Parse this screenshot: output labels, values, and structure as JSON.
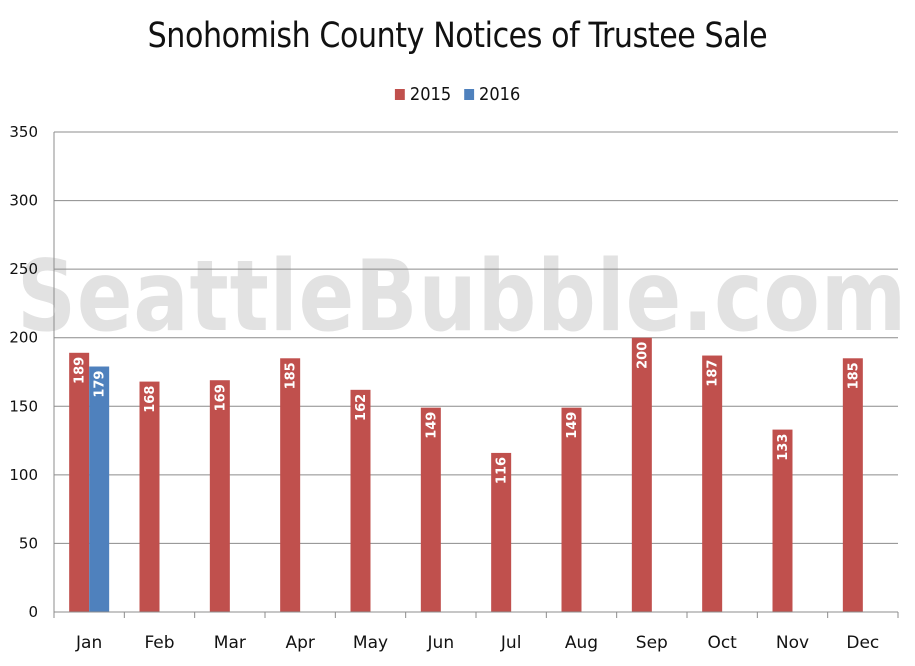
{
  "chart_data": {
    "type": "bar",
    "title": "Snohomish County Notices of Trustee Sale",
    "watermark": "SeattleBubble.com",
    "categories": [
      "Jan",
      "Feb",
      "Mar",
      "Apr",
      "May",
      "Jun",
      "Jul",
      "Aug",
      "Sep",
      "Oct",
      "Nov",
      "Dec"
    ],
    "series": [
      {
        "name": "2015",
        "color": "#c0504d",
        "values": [
          189,
          168,
          169,
          185,
          162,
          149,
          116,
          149,
          200,
          187,
          133,
          185
        ]
      },
      {
        "name": "2016",
        "color": "#4f81bd",
        "values": [
          179,
          null,
          null,
          null,
          null,
          null,
          null,
          null,
          null,
          null,
          null,
          null
        ]
      }
    ],
    "yticks": [
      "0",
      "50",
      "100",
      "150",
      "200",
      "250",
      "300",
      "350"
    ],
    "ylim": [
      0,
      350
    ],
    "grid": true,
    "legend_position": "top-center",
    "data_labels": true
  }
}
